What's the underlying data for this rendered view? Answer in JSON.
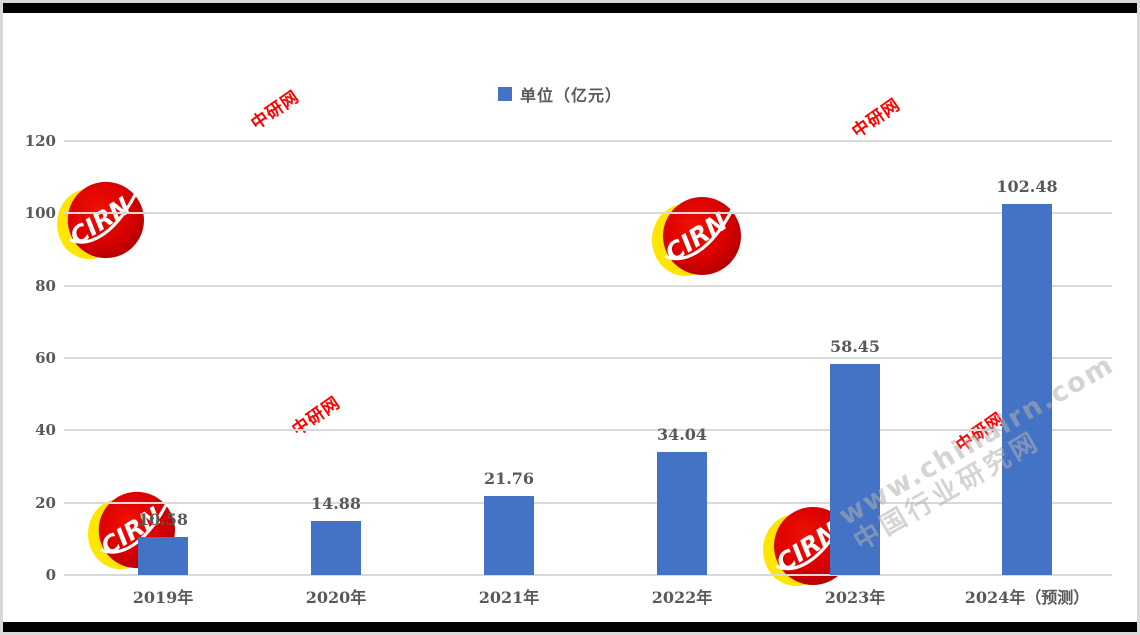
{
  "frame": {
    "border_color": "#d9d9d9",
    "edge_bar_color": "#000000"
  },
  "legend": {
    "label": "单位（亿元）",
    "swatch_color": "#4472C4"
  },
  "chart_data": {
    "type": "bar",
    "title": "",
    "categories": [
      "2019年",
      "2020年",
      "2021年",
      "2022年",
      "2023年",
      "2024年（预测）"
    ],
    "values": [
      10.58,
      14.88,
      21.76,
      34.04,
      58.45,
      102.48
    ],
    "value_labels": [
      "10.58",
      "14.88",
      "21.76",
      "34.04",
      "58.45",
      "102.48"
    ],
    "legend": "单位（亿元）",
    "legend_position": "top-center",
    "xlabel": "",
    "ylabel": "",
    "ylim": [
      0,
      120
    ],
    "yticks": [
      0,
      20,
      40,
      60,
      80,
      100,
      120
    ],
    "grid": true,
    "bar_color": "#4472C4",
    "label_color": "#595959",
    "gridline_color": "#d9d9d9"
  },
  "watermarks": {
    "logo_text": "CIRN",
    "logo_red": "#d80000",
    "logo_yellow": "#ffe600",
    "stamp_text": "中研网",
    "stamp_color": "#ff0000",
    "site_line1": "www.chinairn.com",
    "site_line2": "中国行业研究网"
  }
}
